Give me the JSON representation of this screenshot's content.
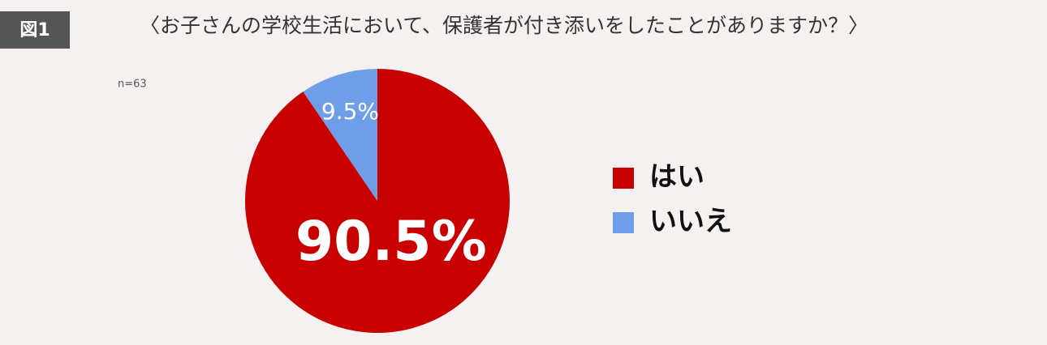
{
  "chart_data": {
    "type": "pie",
    "figure_label": "図1",
    "title": "〈お子さんの学校生活において、保護者が付き添いをしたことがありますか？〉",
    "note": "n=63",
    "categories": [
      "はい",
      "いいえ"
    ],
    "values": [
      90.5,
      9.5
    ],
    "value_labels": [
      "90.5%",
      "9.5%"
    ],
    "colors": [
      "#c80000",
      "#6e9ee8"
    ],
    "legend": "right"
  }
}
